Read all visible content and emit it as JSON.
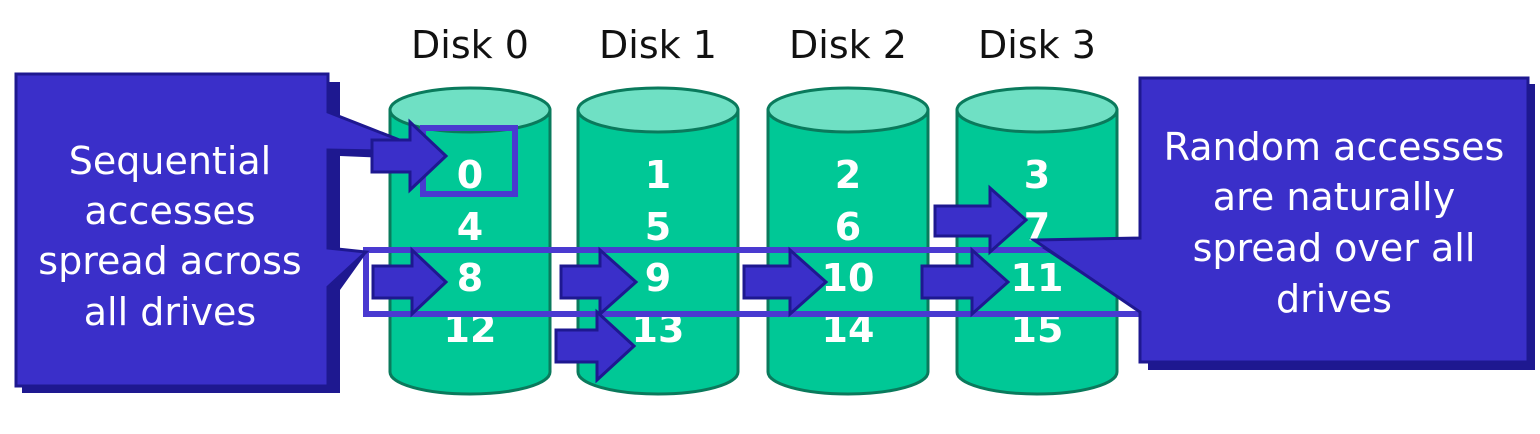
{
  "colors": {
    "disk_body": "#00C896",
    "disk_top": "#6FE0C4",
    "disk_stroke": "#0A7A5C",
    "callout_fill": "#3A2FC9",
    "callout_stroke": "#1E1890",
    "arrow_fill": "#3A2FC9",
    "highlight": "#4A3AD0"
  },
  "disks": [
    {
      "title": "Disk 0",
      "blocks": [
        "0",
        "4",
        "8",
        "12"
      ]
    },
    {
      "title": "Disk 1",
      "blocks": [
        "1",
        "5",
        "9",
        "13"
      ]
    },
    {
      "title": "Disk 2",
      "blocks": [
        "2",
        "6",
        "10",
        "14"
      ]
    },
    {
      "title": "Disk 3",
      "blocks": [
        "3",
        "7",
        "11",
        "15"
      ]
    }
  ],
  "callouts": {
    "left": {
      "lines": [
        "Sequential",
        "accesses",
        "spread across",
        "all drives"
      ]
    },
    "right": {
      "lines": [
        "Random accesses",
        "are naturally",
        "spread over all",
        "drives"
      ]
    }
  }
}
